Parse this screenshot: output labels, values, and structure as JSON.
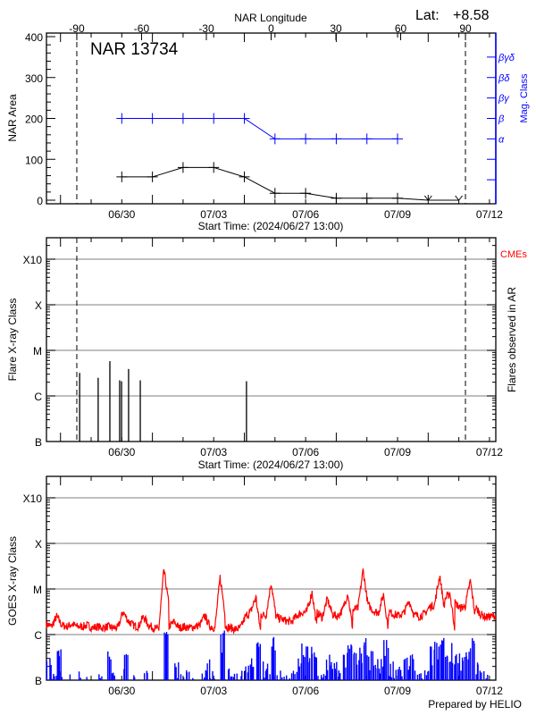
{
  "header": {
    "lat_label": "Lat:",
    "lat_value": "+8.58",
    "footer": "Prepared by HELIO"
  },
  "colors": {
    "area": "#000000",
    "mag_class": "#0000ff",
    "goes_long": "#ff0000",
    "goes_short": "#0000ff",
    "cme": "#ff0000",
    "grid": "#999999"
  },
  "chart_data": [
    {
      "type": "line",
      "title": "NAR 13734",
      "xlabel": "Start Time: (2024/06/27 13:00)",
      "ylabel": "NAR Area",
      "y2label": "Mag. Class",
      "toplabel": "NAR Longitude",
      "start": "06/27 13:00",
      "xticks": [
        "06/30",
        "07/03",
        "07/06",
        "07/09",
        "07/12"
      ],
      "top_ticks": [
        "-90",
        "-60",
        "-30",
        "0",
        "30",
        "60",
        "90"
      ],
      "yticks": [
        "0",
        "100",
        "200",
        "300",
        "400"
      ],
      "ylim": [
        0,
        400
      ],
      "mag_ticks": [
        "α",
        "β",
        "βγ",
        "βδ",
        "βγδ"
      ],
      "area": [
        {
          "t": "06/30 00:00",
          "v": 57
        },
        {
          "t": "07/01 00:00",
          "v": 57
        },
        {
          "t": "07/02 00:00",
          "v": 80
        },
        {
          "t": "07/03 00:00",
          "v": 80
        },
        {
          "t": "07/04 00:00",
          "v": 57
        },
        {
          "t": "07/05 00:00",
          "v": 17
        },
        {
          "t": "07/06 00:00",
          "v": 17
        },
        {
          "t": "07/07 00:00",
          "v": 5
        },
        {
          "t": "07/08 00:00",
          "v": 5
        },
        {
          "t": "07/09 00:00",
          "v": 5
        },
        {
          "t": "07/10 00:00",
          "v": 0,
          "marker": "v"
        },
        {
          "t": "07/11 00:00",
          "v": 0,
          "marker": "v"
        }
      ],
      "mag_class": [
        {
          "t": "06/30 00:00",
          "c": "β"
        },
        {
          "t": "07/01 00:00",
          "c": "β"
        },
        {
          "t": "07/02 00:00",
          "c": "β"
        },
        {
          "t": "07/03 00:00",
          "c": "β"
        },
        {
          "t": "07/04 00:00",
          "c": "β"
        },
        {
          "t": "07/05 00:00",
          "c": "α"
        },
        {
          "t": "07/06 00:00",
          "c": "α"
        },
        {
          "t": "07/07 00:00",
          "c": "α"
        },
        {
          "t": "07/08 00:00",
          "c": "α"
        },
        {
          "t": "07/09 00:00",
          "c": "α"
        }
      ],
      "limb_longitudes": [
        -90,
        90
      ]
    },
    {
      "type": "bar",
      "xlabel": "Start Time: (2024/06/27 13:00)",
      "ylabel": "Flare X-ray Class",
      "y2label": "Flares observed in AR",
      "legend": "CMEs",
      "yticks": [
        "B",
        "C",
        "M",
        "X",
        "X10"
      ],
      "yscale": "log",
      "grid": true,
      "flares": [
        {
          "t": "06/28 15:00",
          "class": "C3.2"
        },
        {
          "t": "06/29 05:30",
          "class": "C2.5"
        },
        {
          "t": "06/29 14:40",
          "class": "C5.8"
        },
        {
          "t": "06/29 22:20",
          "class": "C2.2"
        },
        {
          "t": "06/29 23:50",
          "class": "C2.1"
        },
        {
          "t": "06/30 05:20",
          "class": "C3.9"
        },
        {
          "t": "06/30 14:30",
          "class": "C2.2"
        },
        {
          "t": "07/04 01:40",
          "class": "C2.1"
        }
      ]
    },
    {
      "type": "line",
      "ylabel": "GOES X-ray Class",
      "yticks": [
        "B",
        "C",
        "M",
        "X",
        "X10"
      ],
      "yscale": "log",
      "grid": true,
      "sample_hours": 4,
      "long_channel_C": [
        1.7,
        1.5,
        2.5,
        1.6,
        1.5,
        1.7,
        1.5,
        1.5,
        1.6,
        1.4,
        1.5,
        1.4,
        1.5,
        1.4,
        1.4,
        3.2,
        2.0,
        1.6,
        1.5,
        2.5,
        1.6,
        1.4,
        1.3,
        27,
        1.5,
        1.9,
        1.4,
        1.5,
        1.4,
        1.5,
        1.6,
        2.6,
        1.5,
        1.4,
        18,
        1.5,
        1.4,
        1.3,
        1.4,
        2.5,
        3.2,
        6.5,
        2.8,
        2.6,
        14,
        2.4,
        2.2,
        2.0,
        1.9,
        2.6,
        3.0,
        3.2,
        8.5,
        3.0,
        2.4,
        6.0,
        2.8,
        2.5,
        3.5,
        8.0,
        3.5,
        3.8,
        26,
        4.5,
        3.3,
        3.0,
        7.5,
        3.2,
        2.8,
        2.6,
        3.0,
        5.5,
        2.7,
        2.5,
        2.8,
        4.0,
        4.5,
        20,
        6.0,
        8.0,
        5.0,
        3.8,
        4.2,
        15,
        4.0,
        2.8,
        2.4,
        2.5,
        2.6
      ],
      "short_channel_B": [
        2.5,
        1.2,
        3.8,
        1.1,
        1.3,
        0.8,
        1.8,
        1.0,
        0.9,
        1.1,
        1.2,
        0.9,
        3.5,
        1.2,
        1.1,
        3.0,
        0.9,
        1.0,
        0.8,
        1.4,
        0.9,
        1.1,
        1.0,
        9.0,
        1.0,
        2.1,
        1.2,
        1.3,
        0.9,
        1.0,
        1.1,
        2.2,
        1.4,
        1.0,
        10,
        1.5,
        1.8,
        1.1,
        1.3,
        1.9,
        2.5,
        5.5,
        2.0,
        1.8,
        8.0,
        1.6,
        1.2,
        1.4,
        1.3,
        2.6,
        5.5,
        5.0,
        3.2,
        1.5,
        2.4,
        3.0,
        2.8,
        1.5,
        3.5,
        5.5,
        3.2,
        4.0,
        8.0,
        3.8,
        3.0,
        2.5,
        6.0,
        2.0,
        1.5,
        1.7,
        2.8,
        3.0,
        1.3,
        1.2,
        1.5,
        4.5,
        5.5,
        8.5,
        4.0,
        5.5,
        4.0,
        3.0,
        3.5,
        6.5,
        2.0,
        1.3,
        1.2,
        1.1,
        1.3
      ]
    }
  ]
}
